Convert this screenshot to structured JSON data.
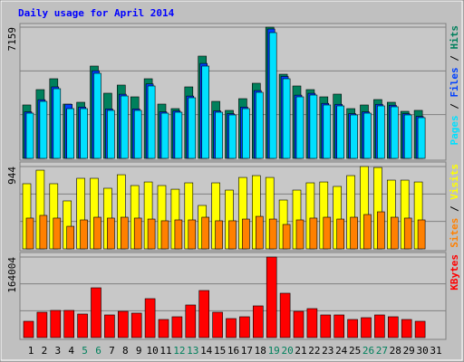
{
  "chart_data": [
    {
      "type": "bar",
      "title": "Daily usage for April 2014",
      "title_color": "#0000ff",
      "legend_separator": "/",
      "ylim": [
        0,
        7159
      ],
      "yticks": [
        7159
      ],
      "series": [
        {
          "name": "Hits",
          "color": "#00805c",
          "values": [
            2914,
            3752,
            4345,
            2962,
            3061,
            5036,
            3555,
            3999,
            3357,
            4345,
            2962,
            2715,
            3900,
            5579,
            3110,
            2617,
            3258,
            4098,
            7159,
            4591,
            3950,
            3752,
            3357,
            3505,
            2715,
            2913,
            3209,
            3061,
            2567,
            2618,
            null
          ]
        },
        {
          "name": "Files",
          "color": "#0040ff",
          "values": [
            2540,
            3200,
            3900,
            2950,
            2800,
            4780,
            2700,
            3500,
            2700,
            4060,
            2540,
            2590,
            3400,
            5180,
            2590,
            2440,
            2800,
            3700,
            7060,
            4470,
            3450,
            3550,
            3000,
            2950,
            2440,
            2540,
            2950,
            2900,
            2440,
            2290,
            null
          ]
        },
        {
          "name": "Pages",
          "color": "#00e0ff",
          "values": [
            2468,
            3110,
            3801,
            2715,
            2715,
            4641,
            2617,
            3406,
            2617,
            3950,
            2468,
            2518,
            3308,
            5036,
            2518,
            2370,
            2715,
            3604,
            6862,
            4345,
            3357,
            3456,
            2913,
            2864,
            2370,
            2468,
            2864,
            2815,
            2370,
            2222,
            null
          ]
        }
      ]
    },
    {
      "type": "bar",
      "legend_separator": "/",
      "ylim": [
        0,
        944
      ],
      "yticks": [
        944
      ],
      "series": [
        {
          "name": "Visits",
          "color": "#ffff00",
          "values": [
            747,
            902,
            747,
            550,
            809,
            809,
            695,
            850,
            726,
            767,
            726,
            684,
            757,
            498,
            757,
            674,
            819,
            840,
            819,
            560,
            674,
            757,
            767,
            716,
            840,
            944,
            933,
            788,
            788,
            767,
            null
          ]
        },
        {
          "name": "Sites",
          "color": "#ff8000",
          "values": [
            353,
            384,
            353,
            259,
            332,
            363,
            353,
            363,
            353,
            342,
            322,
            332,
            332,
            363,
            322,
            322,
            342,
            373,
            342,
            280,
            332,
            353,
            363,
            342,
            363,
            394,
            425,
            363,
            353,
            332,
            null
          ]
        }
      ]
    },
    {
      "type": "bar",
      "ylim": [
        0,
        164004
      ],
      "yticks": [
        164004
      ],
      "categories": [
        "1",
        "2",
        "3",
        "4",
        "5",
        "6",
        "7",
        "8",
        "9",
        "10",
        "11",
        "12",
        "13",
        "14",
        "15",
        "16",
        "17",
        "18",
        "19",
        "20",
        "21",
        "22",
        "23",
        "24",
        "25",
        "26",
        "27",
        "28",
        "29",
        "30",
        "31"
      ],
      "category_colors": [
        "#000000",
        "#000000",
        "#000000",
        "#000000",
        "#00805c",
        "#00805c",
        "#000000",
        "#000000",
        "#000000",
        "#000000",
        "#000000",
        "#00805c",
        "#00805c",
        "#000000",
        "#000000",
        "#000000",
        "#000000",
        "#000000",
        "#00805c",
        "#00805c",
        "#000000",
        "#000000",
        "#000000",
        "#000000",
        "#000000",
        "#00805c",
        "#00805c",
        "#000000",
        "#000000",
        "#000000",
        "#000000"
      ],
      "series": [
        {
          "name": "KBytes",
          "color": "#ff0000",
          "values": [
            33174,
            51604,
            55290,
            55290,
            47918,
            101365,
            46075,
            53447,
            49761,
            79249,
            36860,
            42389,
            66348,
            95836,
            51604,
            38703,
            42389,
            64505,
            164004,
            90307,
            53447,
            58976,
            46075,
            46075,
            36860,
            40546,
            46075,
            42389,
            36860,
            33174,
            null
          ]
        }
      ]
    }
  ]
}
